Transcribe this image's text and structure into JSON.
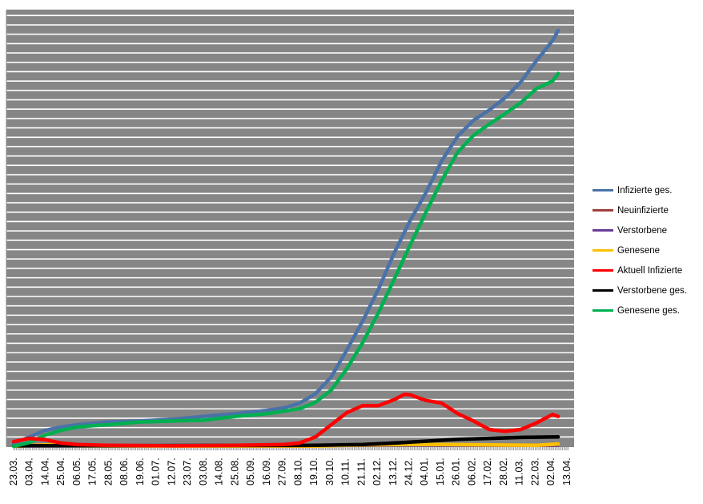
{
  "chart_data": {
    "type": "line",
    "title": "",
    "xlabel": "",
    "ylabel": "",
    "y_axis_labels_shown": false,
    "ylim": [
      0,
      46.5
    ],
    "y_units_note": "",
    "grid": true,
    "plot_background": "#868686",
    "grid_color": "#ffffff",
    "legend_position": "right",
    "x_start": "2020-03-23",
    "x_end": "2021-04-13",
    "x_tick_labels": [
      "23.03.",
      "03.04.",
      "14.04.",
      "25.04.",
      "06.05.",
      "17.05.",
      "28.05.",
      "08.06.",
      "19.06.",
      "01.07.",
      "12.07.",
      "23.07.",
      "03.08.",
      "14.08.",
      "25.08.",
      "05.09.",
      "16.09.",
      "27.09.",
      "08.10.",
      "19.10.",
      "30.10.",
      "10.11.",
      "21.11.",
      "02.12.",
      "13.12.",
      "24.12.",
      "04.01.",
      "15.01.",
      "26.01.",
      "06.02.",
      "17.02.",
      "28.02.",
      "11.03.",
      "22.03.",
      "02.04.",
      "13.04."
    ],
    "series": [
      {
        "name": "Infizierte ges.",
        "color": "#4a72a8",
        "points": [
          [
            "2020-03-23",
            0.3
          ],
          [
            "2020-04-03",
            1.0
          ],
          [
            "2020-04-14",
            1.7
          ],
          [
            "2020-04-25",
            2.05
          ],
          [
            "2020-05-06",
            2.3
          ],
          [
            "2020-05-28",
            2.6
          ],
          [
            "2020-06-19",
            2.7
          ],
          [
            "2020-07-12",
            2.9
          ],
          [
            "2020-08-03",
            3.2
          ],
          [
            "2020-08-25",
            3.5
          ],
          [
            "2020-09-16",
            3.85
          ],
          [
            "2020-09-27",
            4.1
          ],
          [
            "2020-10-08",
            4.6
          ],
          [
            "2020-10-19",
            5.6
          ],
          [
            "2020-10-30",
            7.4
          ],
          [
            "2020-11-10",
            10.3
          ],
          [
            "2020-11-21",
            13.4
          ],
          [
            "2020-12-02",
            16.8
          ],
          [
            "2020-12-13",
            20.7
          ],
          [
            "2020-12-24",
            24.1
          ],
          [
            "2021-01-04",
            27.1
          ],
          [
            "2021-01-15",
            30.5
          ],
          [
            "2021-01-26",
            33.1
          ],
          [
            "2021-02-06",
            34.8
          ],
          [
            "2021-02-17",
            35.9
          ],
          [
            "2021-02-28",
            37.2
          ],
          [
            "2021-03-11",
            38.9
          ],
          [
            "2021-03-22",
            41.2
          ],
          [
            "2021-04-02",
            43.3
          ],
          [
            "2021-04-06",
            44.4
          ]
        ]
      },
      {
        "name": "Neuinfizierte",
        "color": "#a0413c",
        "points": [
          [
            "2020-03-23",
            0.1
          ],
          [
            "2020-04-03",
            0.15
          ],
          [
            "2020-05-06",
            0.02
          ],
          [
            "2020-09-27",
            0.05
          ],
          [
            "2020-10-30",
            0.1
          ],
          [
            "2020-12-13",
            0.2
          ],
          [
            "2021-01-15",
            0.15
          ],
          [
            "2021-02-28",
            0.08
          ],
          [
            "2021-04-06",
            0.15
          ]
        ]
      },
      {
        "name": "Verstorbene",
        "color": "#6a3d9a",
        "points": [
          [
            "2020-03-23",
            0.0
          ],
          [
            "2020-11-10",
            0.02
          ],
          [
            "2020-12-24",
            0.05
          ],
          [
            "2021-01-15",
            0.04
          ],
          [
            "2021-04-06",
            0.02
          ]
        ]
      },
      {
        "name": "Genesene",
        "color": "#ffc000",
        "points": [
          [
            "2020-03-23",
            0.0
          ],
          [
            "2020-04-14",
            0.15
          ],
          [
            "2020-05-06",
            0.05
          ],
          [
            "2020-10-19",
            0.02
          ],
          [
            "2020-11-21",
            0.15
          ],
          [
            "2020-12-24",
            0.2
          ],
          [
            "2021-01-15",
            0.2
          ],
          [
            "2021-02-17",
            0.15
          ],
          [
            "2021-03-22",
            0.1
          ],
          [
            "2021-04-06",
            0.25
          ]
        ]
      },
      {
        "name": "Aktuell Infizierte",
        "color": "#ff0000",
        "points": [
          [
            "2020-03-23",
            0.5
          ],
          [
            "2020-04-03",
            0.85
          ],
          [
            "2020-04-14",
            0.7
          ],
          [
            "2020-04-25",
            0.35
          ],
          [
            "2020-05-06",
            0.2
          ],
          [
            "2020-05-28",
            0.1
          ],
          [
            "2020-07-12",
            0.05
          ],
          [
            "2020-08-25",
            0.1
          ],
          [
            "2020-09-27",
            0.2
          ],
          [
            "2020-10-08",
            0.35
          ],
          [
            "2020-10-19",
            1.0
          ],
          [
            "2020-10-30",
            2.3
          ],
          [
            "2020-11-10",
            3.6
          ],
          [
            "2020-11-21",
            4.35
          ],
          [
            "2020-12-02",
            4.35
          ],
          [
            "2020-12-13",
            5.0
          ],
          [
            "2020-12-20",
            5.55
          ],
          [
            "2020-12-24",
            5.5
          ],
          [
            "2021-01-04",
            4.9
          ],
          [
            "2021-01-15",
            4.6
          ],
          [
            "2021-01-26",
            3.5
          ],
          [
            "2021-02-06",
            2.7
          ],
          [
            "2021-02-17",
            1.8
          ],
          [
            "2021-02-28",
            1.6
          ],
          [
            "2021-03-11",
            1.8
          ],
          [
            "2021-03-22",
            2.5
          ],
          [
            "2021-04-02",
            3.4
          ],
          [
            "2021-04-06",
            3.2
          ]
        ]
      },
      {
        "name": "Verstorbene ges.",
        "color": "#000000",
        "points": [
          [
            "2020-03-23",
            0.05
          ],
          [
            "2020-10-19",
            0.1
          ],
          [
            "2020-11-21",
            0.2
          ],
          [
            "2020-12-13",
            0.35
          ],
          [
            "2021-01-04",
            0.55
          ],
          [
            "2021-01-26",
            0.75
          ],
          [
            "2021-02-17",
            0.85
          ],
          [
            "2021-03-11",
            0.95
          ],
          [
            "2021-04-06",
            1.0
          ]
        ]
      },
      {
        "name": "Genesene ges.",
        "color": "#00b050",
        "points": [
          [
            "2020-03-23",
            0.0
          ],
          [
            "2020-04-03",
            0.4
          ],
          [
            "2020-04-14",
            1.2
          ],
          [
            "2020-04-25",
            1.7
          ],
          [
            "2020-05-06",
            2.05
          ],
          [
            "2020-05-17",
            2.2
          ],
          [
            "2020-05-28",
            2.3
          ],
          [
            "2020-06-19",
            2.6
          ],
          [
            "2020-07-12",
            2.7
          ],
          [
            "2020-08-03",
            2.8
          ],
          [
            "2020-08-25",
            3.2
          ],
          [
            "2020-09-16",
            3.5
          ],
          [
            "2020-10-08",
            4.0
          ],
          [
            "2020-10-19",
            4.7
          ],
          [
            "2020-10-30",
            6.0
          ],
          [
            "2020-11-10",
            8.3
          ],
          [
            "2020-11-21",
            11.1
          ],
          [
            "2020-12-02",
            14.3
          ],
          [
            "2020-12-13",
            17.9
          ],
          [
            "2020-12-24",
            21.5
          ],
          [
            "2021-01-04",
            25.0
          ],
          [
            "2021-01-15",
            28.4
          ],
          [
            "2021-01-26",
            31.4
          ],
          [
            "2021-02-06",
            33.2
          ],
          [
            "2021-02-17",
            34.4
          ],
          [
            "2021-02-28",
            35.5
          ],
          [
            "2021-03-11",
            36.7
          ],
          [
            "2021-03-22",
            38.2
          ],
          [
            "2021-04-02",
            39.0
          ],
          [
            "2021-04-06",
            39.8
          ]
        ]
      }
    ]
  }
}
